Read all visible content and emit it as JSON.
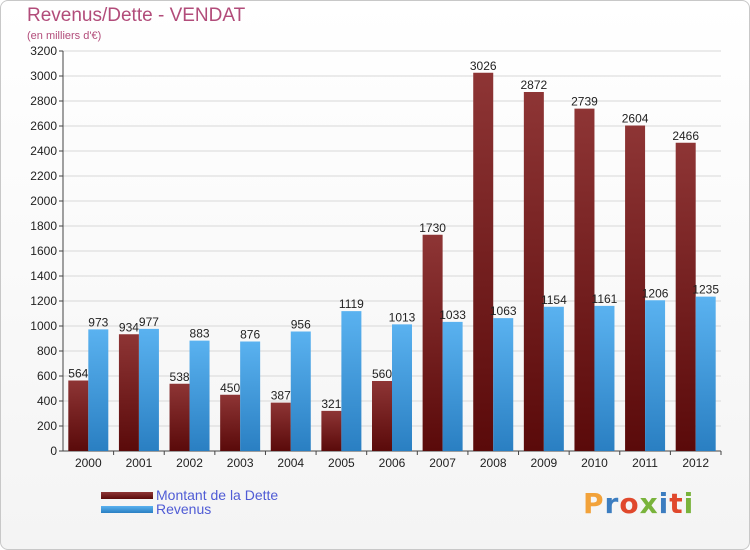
{
  "header": {
    "title": "Revenus/Dette - VENDAT",
    "subtitle": "(en milliers d'€)"
  },
  "logo": {
    "text": "Proxiti",
    "colors": [
      "#f2a23a",
      "#3c7dc0",
      "#e0482c",
      "#79b33b",
      "#3c7dc0",
      "#e0482c",
      "#79b33b"
    ]
  },
  "chart_data": {
    "type": "bar",
    "categories": [
      "2000",
      "2001",
      "2002",
      "2003",
      "2004",
      "2005",
      "2006",
      "2007",
      "2008",
      "2009",
      "2010",
      "2011",
      "2012"
    ],
    "series": [
      {
        "name": "Montant de la Dette",
        "color": "#7a1a1a",
        "values": [
          564,
          934,
          538,
          450,
          387,
          321,
          560,
          1730,
          3026,
          2872,
          2739,
          2604,
          2466
        ]
      },
      {
        "name": "Revenus",
        "color": "#3e9be0",
        "values": [
          973,
          977,
          883,
          876,
          956,
          1119,
          1013,
          1033,
          1063,
          1154,
          1161,
          1206,
          1235
        ]
      }
    ],
    "ylim": [
      0,
      3200
    ],
    "yticks": [
      0,
      200,
      400,
      600,
      800,
      1000,
      1200,
      1400,
      1600,
      1800,
      2000,
      2200,
      2400,
      2600,
      2800,
      3000,
      3200
    ],
    "grid": true,
    "legend_position": "bottom-left"
  }
}
